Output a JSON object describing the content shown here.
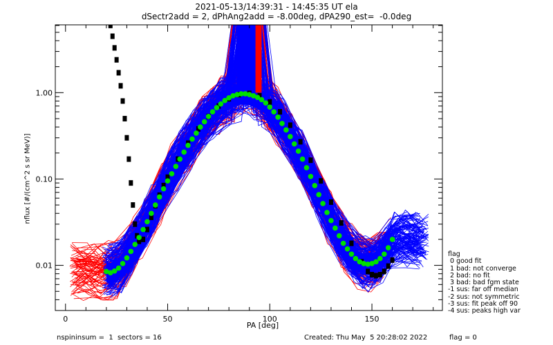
{
  "chart_data": {
    "type": "line",
    "title_lines": [
      "2021-05-13/14:39:31 - 14:45:35 UT ela",
      "dSectr2add = 2, dPhAng2add = -8.00deg, dPA290_est=  -0.0deg"
    ],
    "xlabel": "PA [deg]",
    "ylabel": "nflux [#/(cm^2 s sr MeV)]",
    "xlim": [
      -5,
      184.5
    ],
    "ylim": [
      0.003,
      6.1
    ],
    "yscale": "log",
    "xticks": [
      0,
      50,
      100,
      150
    ],
    "xtick_labels": [
      "0",
      "50",
      "100",
      "150"
    ],
    "yticks": [
      0.01,
      0.1,
      1.0
    ],
    "ytick_labels": [
      "0.01",
      "0.10",
      "1.00"
    ],
    "series": [
      {
        "name": "green-fit",
        "color": "#00e000",
        "style": "dots",
        "x": [
          20,
          22,
          24,
          26,
          28,
          30,
          32,
          34,
          36,
          38,
          40,
          42,
          44,
          46,
          48,
          50,
          52,
          54,
          56,
          58,
          60,
          62,
          64,
          66,
          68,
          70,
          72,
          74,
          76,
          78,
          80,
          82,
          84,
          86,
          88,
          90,
          92,
          94,
          96,
          98,
          100,
          102,
          104,
          106,
          108,
          110,
          112,
          114,
          116,
          118,
          120,
          122,
          124,
          126,
          128,
          130,
          132,
          134,
          136,
          138,
          140,
          142,
          144,
          146,
          148,
          150,
          152,
          154,
          156,
          158,
          160
        ],
        "y": [
          0.0085,
          0.0082,
          0.0086,
          0.0093,
          0.0105,
          0.0122,
          0.0145,
          0.0175,
          0.021,
          0.026,
          0.032,
          0.04,
          0.05,
          0.062,
          0.077,
          0.095,
          0.115,
          0.14,
          0.17,
          0.205,
          0.245,
          0.29,
          0.34,
          0.4,
          0.46,
          0.53,
          0.6,
          0.67,
          0.74,
          0.81,
          0.87,
          0.92,
          0.95,
          0.97,
          0.97,
          0.95,
          0.92,
          0.88,
          0.83,
          0.76,
          0.68,
          0.6,
          0.52,
          0.44,
          0.37,
          0.31,
          0.255,
          0.21,
          0.17,
          0.135,
          0.107,
          0.084,
          0.066,
          0.052,
          0.041,
          0.033,
          0.027,
          0.022,
          0.018,
          0.0155,
          0.0135,
          0.012,
          0.011,
          0.0105,
          0.0103,
          0.0105,
          0.011,
          0.012,
          0.0135,
          0.016,
          0.02
        ]
      },
      {
        "name": "black-model",
        "color": "#000000",
        "style": "dashes",
        "x": [
          22,
          23,
          24,
          25,
          26,
          27,
          28,
          29,
          30,
          31,
          32,
          33,
          34,
          35,
          36,
          38,
          40,
          42,
          44,
          46,
          48,
          50,
          55,
          60,
          65,
          70,
          75,
          80,
          85,
          90,
          95,
          100,
          105,
          110,
          115,
          120,
          125,
          130,
          135,
          140,
          145,
          148,
          150,
          152,
          154,
          156,
          158,
          160
        ],
        "y": [
          6.0,
          4.5,
          3.3,
          2.4,
          1.7,
          1.2,
          0.8,
          0.5,
          0.3,
          0.17,
          0.09,
          0.05,
          0.03,
          0.022,
          0.019,
          0.02,
          0.026,
          0.036,
          0.049,
          0.065,
          0.084,
          0.105,
          0.17,
          0.26,
          0.38,
          0.53,
          0.7,
          0.85,
          0.95,
          0.98,
          0.92,
          0.78,
          0.6,
          0.42,
          0.27,
          0.165,
          0.095,
          0.054,
          0.031,
          0.018,
          0.011,
          0.0085,
          0.0078,
          0.0076,
          0.0078,
          0.0085,
          0.0098,
          0.0115
        ]
      }
    ],
    "bundles": [
      {
        "name": "red-traces",
        "color": "#ff0000"
      },
      {
        "name": "blue-traces",
        "color": "#0000ff"
      }
    ],
    "legend_title": "flag",
    "legend": [
      " 0 good fit",
      " 1 bad: not converge",
      " 2 bad: no fit",
      " 3 bad: bad fgm state",
      "-1 sus: far off median",
      "-2 sus: not symmetric",
      "-3 sus: fit peak off 90",
      "-4 sus: peaks high var"
    ],
    "legend_position": "right"
  },
  "footer": {
    "left": "nspininsum =  1  sectors = 16",
    "created": "Created: Thu May  5 20:28:02 2022",
    "flag": "flag = 0"
  }
}
